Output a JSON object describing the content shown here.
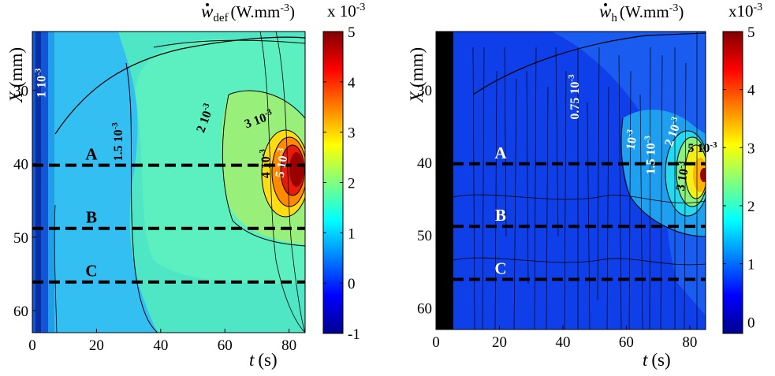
{
  "chart_data": [
    {
      "type": "heatmap",
      "title_symbol": "w",
      "title_sub": "def",
      "title_units": "(W.mm",
      "title_units_exp": "-3",
      "title_units_close": ")",
      "colorbar_multiplier": "x 10",
      "colorbar_multiplier_exp": "-3",
      "xlabel": "t",
      "xlabel_units": "(s)",
      "ylabel": "X",
      "ylabel_units": "(mm)",
      "xlim": [
        0,
        85
      ],
      "ylim": [
        22,
        63
      ],
      "xticks": [
        0,
        20,
        40,
        60,
        80
      ],
      "yticks": [
        30,
        40,
        50,
        60
      ],
      "clim": [
        -1,
        5
      ],
      "colorbar_ticks": [
        -1,
        0,
        1,
        2,
        3,
        4,
        5
      ],
      "lines": [
        {
          "label": "A",
          "x_position": 40.2
        },
        {
          "label": "B",
          "x_position": 48.8
        },
        {
          "label": "C",
          "x_position": 56.1
        }
      ],
      "contour_labels": [
        {
          "text": "1 10-3",
          "t": 4,
          "X": 29,
          "rotation": -90,
          "color": "#ffffff"
        },
        {
          "text": "1.5 10-3",
          "t": 28,
          "X": 37,
          "rotation": -90,
          "color": "#000000"
        },
        {
          "text": "2 10-3",
          "t": 55,
          "X": 34,
          "rotation": -70,
          "color": "#000000"
        },
        {
          "text": "3 10-3",
          "t": 71,
          "X": 34.5,
          "rotation": -20,
          "color": "#000000"
        },
        {
          "text": "4 10-3",
          "t": 74,
          "X": 40,
          "rotation": -90,
          "color": "#000000"
        },
        {
          "text": "5 10-3",
          "t": 79,
          "X": 40,
          "rotation": -80,
          "color": "#ffffff"
        }
      ]
    },
    {
      "type": "heatmap",
      "title_symbol": "w",
      "title_sub": "h",
      "title_units": "(W.mm",
      "title_units_exp": "-3",
      "title_units_close": ")",
      "colorbar_multiplier": "x10",
      "colorbar_multiplier_exp": "-3",
      "xlabel": "t",
      "xlabel_units": "(s)",
      "ylabel": "X",
      "ylabel_units": "(mm)",
      "xlim": [
        0,
        85
      ],
      "ylim": [
        22,
        63
      ],
      "xticks": [
        0,
        20,
        40,
        60,
        80
      ],
      "yticks": [
        30,
        40,
        50,
        60
      ],
      "clim": [
        -0.2,
        5
      ],
      "colorbar_ticks": [
        0,
        1,
        2,
        3,
        4,
        5
      ],
      "lines": [
        {
          "label": "A",
          "x_position": 40.2
        },
        {
          "label": "B",
          "x_position": 48.8
        },
        {
          "label": "C",
          "x_position": 56.1
        }
      ],
      "contour_labels": [
        {
          "text": "0.75 10-3",
          "t": 45,
          "X": 31,
          "rotation": -90,
          "color": "#ffffff"
        },
        {
          "text": "10-3",
          "t": 63,
          "X": 37,
          "rotation": -80,
          "color": "#ffffff"
        },
        {
          "text": "1.5 10-3",
          "t": 69,
          "X": 39,
          "rotation": -90,
          "color": "#ffffff"
        },
        {
          "text": "2 10-3",
          "t": 76,
          "X": 36,
          "rotation": -70,
          "color": "#ffffff"
        },
        {
          "text": "3 10-3",
          "t": 79,
          "X": 42,
          "rotation": -80,
          "color": "#000000"
        },
        {
          "text": "5 10-3",
          "t": 84,
          "X": 38.6,
          "rotation": 0,
          "color": "#000000"
        }
      ]
    }
  ]
}
